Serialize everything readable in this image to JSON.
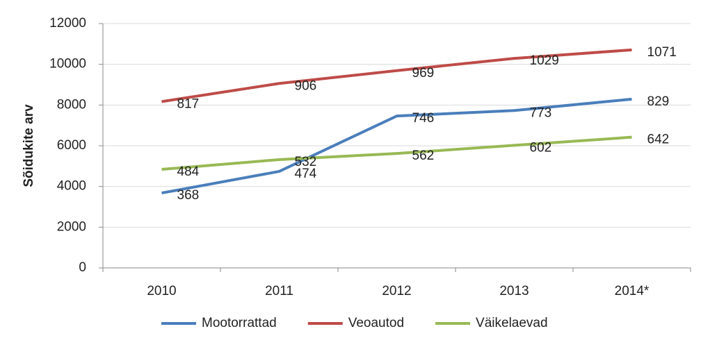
{
  "chart_data": {
    "type": "line",
    "y_label": "Sõidukite arv",
    "categories": [
      "2010",
      "2011",
      "2012",
      "2013",
      "2014*"
    ],
    "series": [
      {
        "name": "Mootorrattad",
        "color": "#4a7ebb",
        "values": [
          3680,
          4740,
          7460,
          7730,
          8290
        ],
        "value_labels": [
          "368",
          "474",
          "746",
          "773",
          "829"
        ]
      },
      {
        "name": "Veoautod",
        "color": "#be4b48",
        "values": [
          8170,
          9060,
          9690,
          10290,
          10710
        ],
        "value_labels": [
          "817",
          "906",
          "969",
          "1029",
          "1071"
        ]
      },
      {
        "name": "Väikelaevad",
        "color": "#98b954",
        "values": [
          4840,
          5320,
          5620,
          6020,
          6420
        ],
        "value_labels": [
          "484",
          "532",
          "562",
          "602",
          "642"
        ]
      }
    ],
    "ylim": [
      0,
      12000
    ],
    "yticks": [
      0,
      2000,
      4000,
      6000,
      8000,
      10000,
      12000
    ],
    "grid": true,
    "legend": "bottom"
  }
}
